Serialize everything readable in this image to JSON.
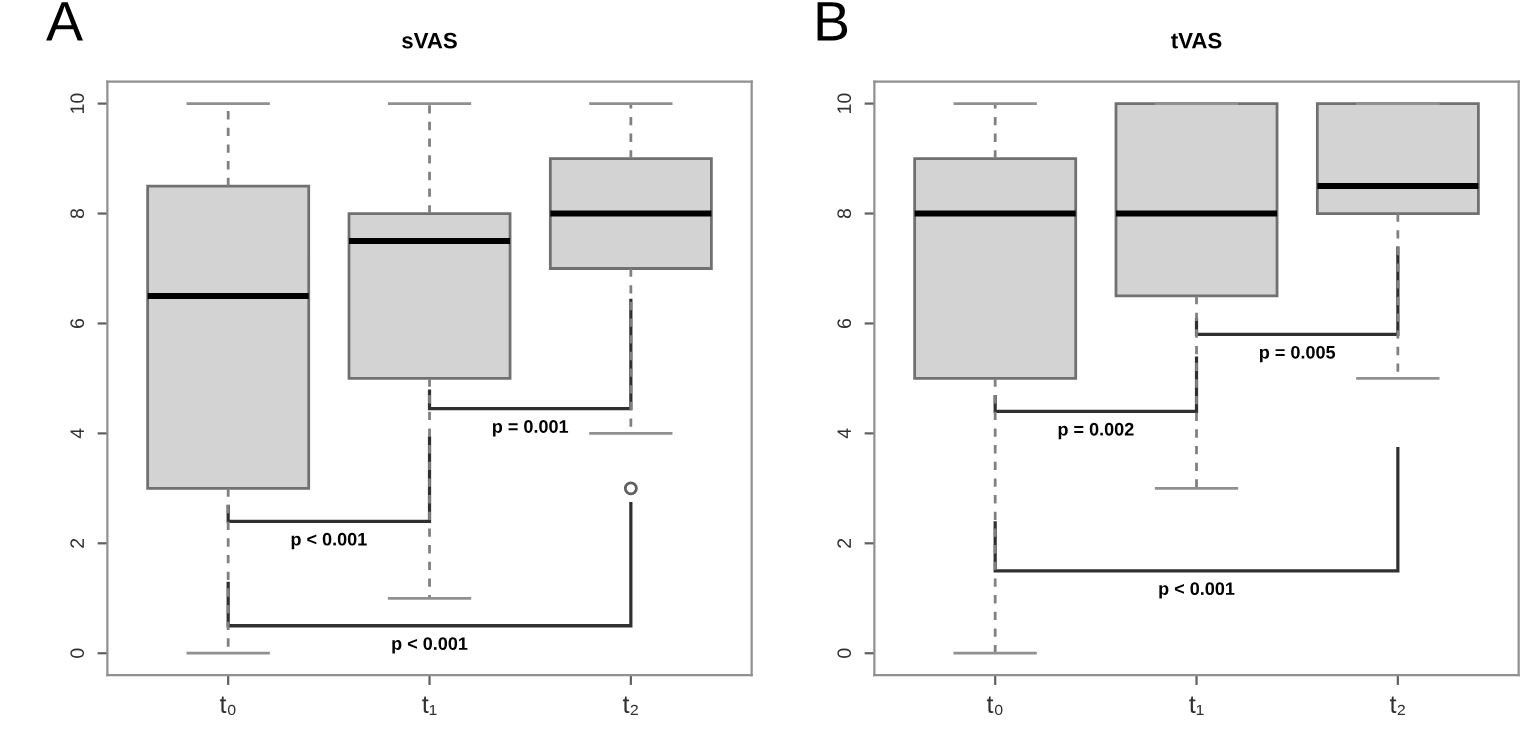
{
  "chart_data": [
    {
      "type": "box",
      "title": "sVAS",
      "categories": [
        "t₀",
        "t₁",
        "t₂"
      ],
      "color": "#d3d3d3",
      "ylim": [
        -0.4,
        10.4
      ],
      "yticks": [
        0,
        2,
        4,
        6,
        8,
        10
      ],
      "grid": false,
      "legend": false,
      "boxes": [
        {
          "low": 0,
          "q1": 3,
          "median": 6.5,
          "q3": 8.5,
          "high": 10
        },
        {
          "low": 1,
          "q1": 5,
          "median": 7.5,
          "q3": 8,
          "high": 10
        },
        {
          "low": 4,
          "q1": 7,
          "median": 8,
          "q3": 9,
          "high": 10,
          "outliers": [
            3
          ]
        }
      ],
      "annotations": [
        "A",
        "p < 0.001",
        "p = 0.001",
        "p < 0.001"
      ]
    },
    {
      "type": "box",
      "title": "tVAS",
      "categories": [
        "t₀",
        "t₁",
        "t₂"
      ],
      "color": "#d3d3d3",
      "ylim": [
        -0.4,
        10.4
      ],
      "yticks": [
        0,
        2,
        4,
        6,
        8,
        10
      ],
      "grid": false,
      "legend": false,
      "boxes": [
        {
          "low": 0,
          "q1": 5,
          "median": 8,
          "q3": 9,
          "high": 10
        },
        {
          "low": 3,
          "q1": 6.5,
          "median": 8,
          "q3": 10,
          "high": 10
        },
        {
          "low": 5,
          "q1": 8,
          "median": 8.5,
          "q3": 10,
          "high": 10
        }
      ],
      "annotations": [
        "B",
        "p = 0.002",
        "p = 0.005",
        "p < 0.001"
      ]
    }
  ]
}
